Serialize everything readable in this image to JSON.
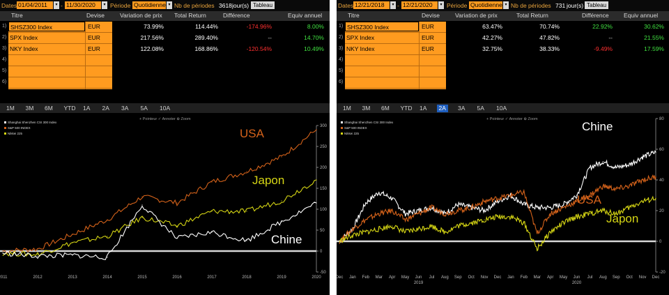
{
  "left": {
    "labels": {
      "dates": "Dates",
      "periode": "Période",
      "nb": "Nb de périodes",
      "jours": "jour(s)",
      "tableau": "Tableau"
    },
    "date_start": "01/04/2011",
    "date_end": "11/30/2020",
    "periode_value": "Quotidienne",
    "nb_value": "3618",
    "headers": [
      "Titre",
      "Devise",
      "Variation de prix",
      "Total Return",
      "Différence",
      "Equiv annuel"
    ],
    "rows": [
      {
        "idx": "1)",
        "titre": "SHSZ300 Index",
        "devise": "EUR",
        "var": "73.99%",
        "tr": "114.44%",
        "diff": "-174.96%",
        "equiv": "8.00%"
      },
      {
        "idx": "2)",
        "titre": "SPX Index",
        "devise": "EUR",
        "var": "217.56%",
        "tr": "289.40%",
        "diff": "--",
        "equiv": "14.70%"
      },
      {
        "idx": "3)",
        "titre": "NKY Index",
        "devise": "EUR",
        "var": "122.08%",
        "tr": "168.86%",
        "diff": "-120.54%",
        "equiv": "10.49%"
      },
      {
        "idx": "4)",
        "titre": "",
        "devise": "",
        "var": "",
        "tr": "",
        "diff": "",
        "equiv": ""
      },
      {
        "idx": "5)",
        "titre": "",
        "devise": "",
        "var": "",
        "tr": "",
        "diff": "",
        "equiv": ""
      },
      {
        "idx": "6)",
        "titre": "",
        "devise": "",
        "var": "",
        "tr": "",
        "diff": "",
        "equiv": ""
      }
    ],
    "periods": [
      "1M",
      "3M",
      "6M",
      "YTD",
      "1A",
      "2A",
      "3A",
      "5A",
      "10A"
    ],
    "selected_period": "",
    "toolbar": "+ Pointeur  ✓ Annoter  ⊕ Zoom",
    "legend": [
      "Shanghai Shenzhen CSI 300 Index",
      "S&P 500 INDEX",
      "Nikkei 225"
    ],
    "annotations": {
      "usa": "USA",
      "japon": "Japon",
      "chine": "Chine"
    }
  },
  "right": {
    "labels": {
      "dates": "Dates",
      "periode": "Période",
      "nb": "Nb de périodes",
      "jours": "jour(s)",
      "tableau": "Tableau"
    },
    "date_start": "12/21/2018",
    "date_end": "12/21/2020",
    "periode_value": "Quotidienne",
    "nb_value": "731",
    "headers": [
      "Titre",
      "Devise",
      "Variation de prix",
      "Total Return",
      "Différence",
      "Equiv annuel"
    ],
    "rows": [
      {
        "idx": "1)",
        "titre": "SHSZ300 Index",
        "devise": "EUR",
        "var": "63.47%",
        "tr": "70.74%",
        "diff": "22.92%",
        "equiv": "30.62%"
      },
      {
        "idx": "2)",
        "titre": "SPX Index",
        "devise": "EUR",
        "var": "42.27%",
        "tr": "47.82%",
        "diff": "--",
        "equiv": "21.55%"
      },
      {
        "idx": "3)",
        "titre": "NKY Index",
        "devise": "EUR",
        "var": "32.75%",
        "tr": "38.33%",
        "diff": "-9.49%",
        "equiv": "17.59%"
      },
      {
        "idx": "4)",
        "titre": "",
        "devise": "",
        "var": "",
        "tr": "",
        "diff": "",
        "equiv": ""
      },
      {
        "idx": "5)",
        "titre": "",
        "devise": "",
        "var": "",
        "tr": "",
        "diff": "",
        "equiv": ""
      },
      {
        "idx": "6)",
        "titre": "",
        "devise": "",
        "var": "",
        "tr": "",
        "diff": "",
        "equiv": ""
      }
    ],
    "periods": [
      "1M",
      "3M",
      "6M",
      "YTD",
      "1A",
      "2A",
      "3A",
      "5A",
      "10A"
    ],
    "selected_period": "2A",
    "toolbar": "+ Pointeur  ✓ Annoter  ⊕ Zoom",
    "legend": [
      "Shanghai Shenzhen CSI 300 Index",
      "S&P 500 INDEX",
      "Nikkei 225"
    ],
    "annotations": {
      "chine": "Chine",
      "usa": "USA",
      "japon": "Japon"
    }
  },
  "colors": {
    "usa": "#d4621a",
    "japon": "#d6d614",
    "chine": "#ffffff",
    "accent": "#ff9b1f",
    "positive": "#40e040",
    "negative": "#ff3030"
  },
  "chart_data": [
    {
      "type": "line",
      "title": "",
      "x": [
        "2011",
        "2012",
        "2013",
        "2014",
        "2015",
        "2016",
        "2017",
        "2018",
        "2019",
        "2020"
      ],
      "ylim": [
        -50,
        300
      ],
      "yticks": [
        -50,
        0,
        50,
        100,
        150,
        200,
        250,
        300
      ],
      "series": [
        {
          "name": "S&P 500 INDEX",
          "color": "#d4621a",
          "values": [
            0,
            5,
            40,
            75,
            130,
            115,
            165,
            190,
            225,
            290
          ]
        },
        {
          "name": "Nikkei 225",
          "color": "#d6d614",
          "values": [
            -5,
            -8,
            20,
            35,
            80,
            60,
            95,
            95,
            120,
            170
          ]
        },
        {
          "name": "Shanghai Shenzhen CSI 300 Index",
          "color": "#ffffff",
          "values": [
            -5,
            -12,
            -10,
            -15,
            110,
            30,
            45,
            25,
            70,
            115
          ]
        }
      ]
    },
    {
      "type": "line",
      "title": "",
      "x": [
        "Dec",
        "Jan",
        "Feb",
        "Mar",
        "Apr",
        "May",
        "Jun",
        "Jul",
        "Aug",
        "Sep",
        "Oct",
        "Nov",
        "Dec",
        "Jan",
        "Feb",
        "Mar",
        "Apr",
        "May",
        "Jun",
        "Jul",
        "Aug",
        "Sep",
        "Oct",
        "Nov",
        "Dec"
      ],
      "year_labels": [
        "2019",
        "2020"
      ],
      "ylim": [
        -20,
        80
      ],
      "yticks": [
        -20,
        0,
        20,
        40,
        60,
        80
      ],
      "series": [
        {
          "name": "Shanghai Shenzhen CSI 300 Index",
          "color": "#ffffff",
          "values": [
            0,
            8,
            25,
            32,
            28,
            18,
            20,
            22,
            18,
            24,
            22,
            20,
            26,
            30,
            24,
            22,
            22,
            24,
            30,
            48,
            52,
            48,
            50,
            55,
            58
          ]
        },
        {
          "name": "S&P 500 INDEX",
          "color": "#d4621a",
          "values": [
            0,
            8,
            14,
            18,
            20,
            14,
            18,
            22,
            18,
            20,
            22,
            26,
            28,
            30,
            32,
            5,
            18,
            22,
            26,
            30,
            36,
            34,
            36,
            40,
            42
          ]
        },
        {
          "name": "Nikkei 225",
          "color": "#d6d614",
          "values": [
            0,
            4,
            6,
            8,
            10,
            6,
            8,
            10,
            6,
            10,
            12,
            14,
            16,
            16,
            12,
            -5,
            6,
            12,
            16,
            18,
            20,
            18,
            22,
            26,
            28
          ]
        }
      ]
    }
  ]
}
